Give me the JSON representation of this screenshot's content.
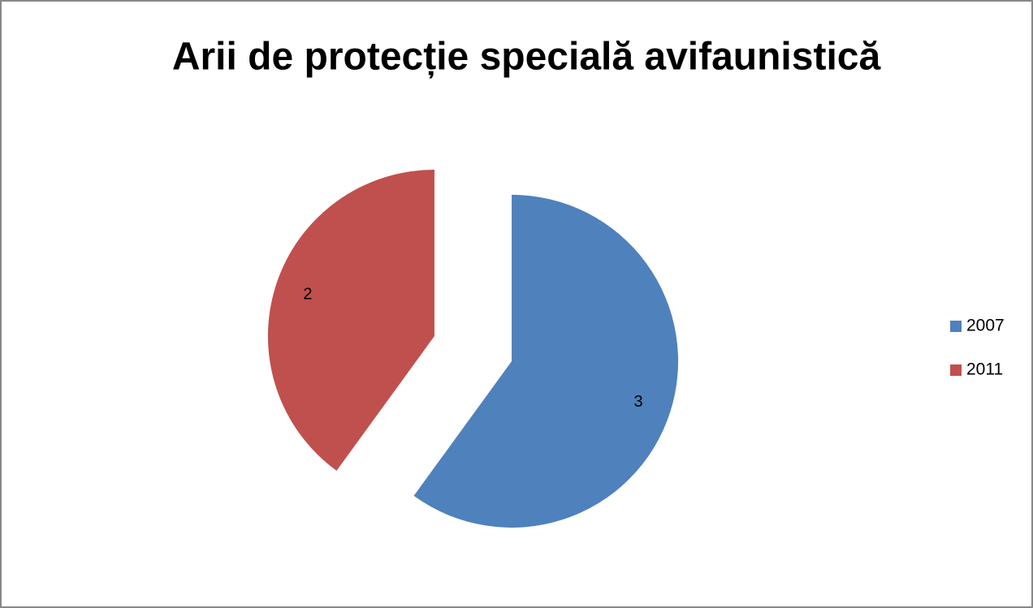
{
  "chart_data": {
    "type": "pie",
    "title": "Arii de protecție specială avifaunistică",
    "categories": [
      "2007",
      "2011"
    ],
    "values": [
      3,
      2
    ],
    "colors": [
      "#4f81bd",
      "#c0504d"
    ],
    "legend": "right",
    "exploded": true
  }
}
